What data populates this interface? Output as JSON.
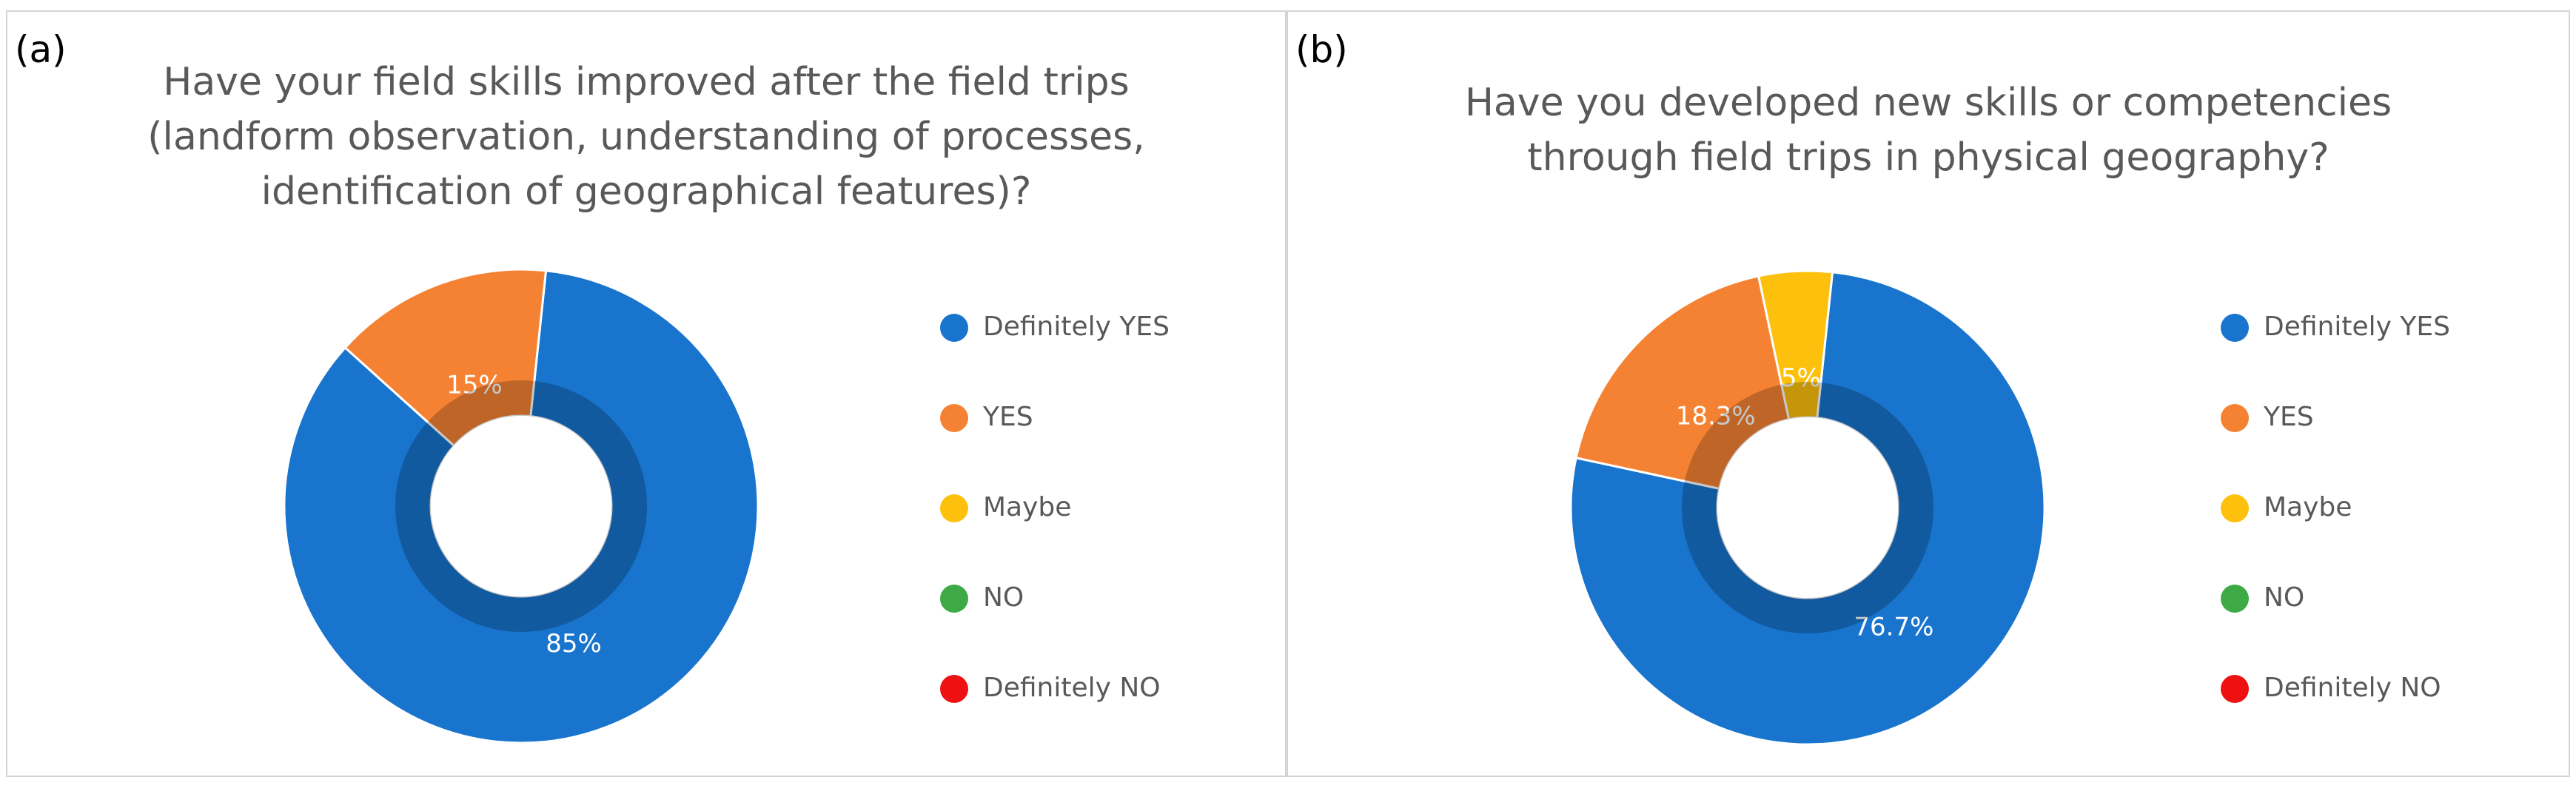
{
  "colors": {
    "definitely_yes": "#1874CD",
    "yes": "#F58233",
    "maybe": "#FDC10D",
    "no": "#3EAA46",
    "definitely_no": "#EE1111",
    "hole_ring": "#1155A0"
  },
  "chart_data": [
    {
      "type": "pie",
      "panel_label": "(a)",
      "title_lines": [
        "Have your field skills improved after the field trips",
        "(landform observation, understanding of processes,",
        "identification of geographical features)?"
      ],
      "categories": [
        "Definitely YES",
        "YES",
        "Maybe",
        "NO",
        "Definitely NO"
      ],
      "values": [
        85,
        15,
        0,
        0,
        0
      ],
      "data_labels": [
        "85%",
        "15%",
        "",
        "",
        ""
      ],
      "legend_position": "right",
      "donut": true
    },
    {
      "type": "pie",
      "panel_label": "(b)",
      "title_lines": [
        "Have you developed new skills or competencies",
        "through field trips in physical geography?"
      ],
      "categories": [
        "Definitely YES",
        "YES",
        "Maybe",
        "NO",
        "Definitely NO"
      ],
      "values": [
        76.7,
        18.3,
        5,
        0,
        0
      ],
      "data_labels": [
        "76.7%",
        "18.3%",
        "5%",
        "",
        ""
      ],
      "legend_position": "right",
      "donut": true
    }
  ]
}
